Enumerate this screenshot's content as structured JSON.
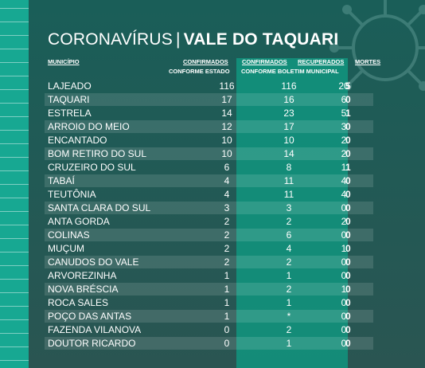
{
  "title": {
    "part1": "CORONAVÍRUS",
    "separator": "|",
    "part2": "VALE DO TAQUARI"
  },
  "headers": {
    "municipio": "MUNICÍPIO",
    "confirmados_estado": "CONFIRMADOS",
    "conforme_estado": "CONFORME ESTADO",
    "confirmados_boletim": "CONFIRMADOS",
    "recuperados": "RECUPERADOS",
    "conforme_boletim": "CONFORME BOLETIM MUNICIPAL",
    "mortes": "MORTES"
  },
  "rows": [
    {
      "name": "LAJEADO",
      "conf_estado": "116",
      "conf_boletim": "116",
      "recuperados": "20",
      "mortes": "5"
    },
    {
      "name": "TAQUARI",
      "conf_estado": "17",
      "conf_boletim": "16",
      "recuperados": "6",
      "mortes": "0"
    },
    {
      "name": "ESTRELA",
      "conf_estado": "14",
      "conf_boletim": "23",
      "recuperados": "5",
      "mortes": "1"
    },
    {
      "name": "ARROIO DO MEIO",
      "conf_estado": "12",
      "conf_boletim": "17",
      "recuperados": "3",
      "mortes": "0"
    },
    {
      "name": "ENCANTADO",
      "conf_estado": "10",
      "conf_boletim": "10",
      "recuperados": "2",
      "mortes": "0"
    },
    {
      "name": "BOM RETIRO DO SUL",
      "conf_estado": "10",
      "conf_boletim": "14",
      "recuperados": "2",
      "mortes": "0"
    },
    {
      "name": "CRUZEIRO DO SUL",
      "conf_estado": "6",
      "conf_boletim": "8",
      "recuperados": "1",
      "mortes": "1"
    },
    {
      "name": "TABAÍ",
      "conf_estado": "4",
      "conf_boletim": "11",
      "recuperados": "4",
      "mortes": "0"
    },
    {
      "name": "TEUTÔNIA",
      "conf_estado": "4",
      "conf_boletim": "11",
      "recuperados": "4",
      "mortes": "0"
    },
    {
      "name": "SANTA CLARA DO SUL",
      "conf_estado": "3",
      "conf_boletim": "3",
      "recuperados": "0",
      "mortes": "0"
    },
    {
      "name": "ANTA GORDA",
      "conf_estado": "2",
      "conf_boletim": "2",
      "recuperados": "2",
      "mortes": "0"
    },
    {
      "name": "COLINAS",
      "conf_estado": "2",
      "conf_boletim": "6",
      "recuperados": "0",
      "mortes": "0"
    },
    {
      "name": "MUÇUM",
      "conf_estado": "2",
      "conf_boletim": "4",
      "recuperados": "1",
      "mortes": "0"
    },
    {
      "name": "CANUDOS DO VALE",
      "conf_estado": "2",
      "conf_boletim": "2",
      "recuperados": "0",
      "mortes": "0"
    },
    {
      "name": "ARVOREZINHA",
      "conf_estado": "1",
      "conf_boletim": "1",
      "recuperados": "0",
      "mortes": "0"
    },
    {
      "name": "NOVA BRÉSCIA",
      "conf_estado": "1",
      "conf_boletim": "2",
      "recuperados": "1",
      "mortes": "0"
    },
    {
      "name": "ROCA SALES",
      "conf_estado": "1",
      "conf_boletim": "1",
      "recuperados": "0",
      "mortes": "0"
    },
    {
      "name": "POÇO DAS ANTAS",
      "conf_estado": "1",
      "conf_boletim": "*",
      "recuperados": "0",
      "mortes": "0"
    },
    {
      "name": "FAZENDA VILANOVA",
      "conf_estado": "0",
      "conf_boletim": "2",
      "recuperados": "0",
      "mortes": "0"
    },
    {
      "name": "DOUTOR RICARDO",
      "conf_estado": "0",
      "conf_boletim": "1",
      "recuperados": "0",
      "mortes": "0"
    }
  ],
  "colors": {
    "teal_stripe": "#17a892",
    "column_highlight": "#12a08a",
    "panel": "#1f5a55"
  }
}
